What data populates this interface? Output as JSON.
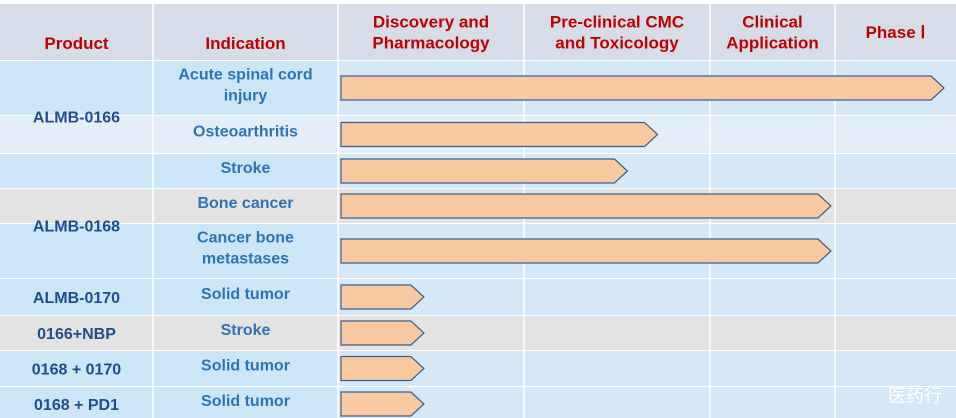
{
  "chart_data": {
    "type": "table",
    "columns": [
      "Product",
      "Indication",
      "Discovery and Pharmacology",
      "Pre-clinical CMC and Toxicology",
      "Clinical Application",
      "Phase Ⅰ"
    ],
    "header_lines": [
      [
        "Product"
      ],
      [
        "Indication"
      ],
      [
        "Discovery and",
        "Pharmacology"
      ],
      [
        "Pre-clinical CMC",
        "and Toxicology"
      ],
      [
        "Clinical",
        "Application"
      ],
      [
        "Phase Ⅰ"
      ]
    ],
    "stage_count": 4,
    "products": [
      {
        "name": "ALMB-0166",
        "rows": [
          {
            "indication": [
              "Acute spinal cord",
              "injury"
            ],
            "progress": 4.0
          },
          {
            "indication": [
              "Osteoarthritis"
            ],
            "progress": 2.1
          },
          {
            "indication": [
              "Stroke"
            ],
            "progress": 1.9
          }
        ]
      },
      {
        "name": "ALMB-0168",
        "rows": [
          {
            "indication": [
              "Bone cancer"
            ],
            "progress": 3.25
          },
          {
            "indication": [
              "Cancer bone",
              "metastases"
            ],
            "progress": 3.25
          }
        ]
      },
      {
        "name": "ALMB-0170",
        "rows": [
          {
            "indication": [
              "Solid tumor"
            ],
            "progress": 0.55
          }
        ]
      },
      {
        "name": "0166+NBP",
        "rows": [
          {
            "indication": [
              "Stroke"
            ],
            "progress": 0.55
          }
        ]
      },
      {
        "name": "0168 + 0170",
        "rows": [
          {
            "indication": [
              "Solid tumor"
            ],
            "progress": 0.55
          }
        ]
      },
      {
        "name": "0168 + PD1",
        "rows": [
          {
            "indication": [
              "Solid tumor"
            ],
            "progress": 0.55
          }
        ]
      }
    ],
    "colors": {
      "header_bg": "#d6dde8",
      "header_text": "#c00000",
      "product_text": "#1f4e8c",
      "indication_text": "#2e74b5",
      "row_blue": "#cce6f8",
      "row_pale": "#e4eef8",
      "row_grey": "#e3e3e3",
      "row_gridblue": "#d5e8f8",
      "bar_fill": "#f8c9a0",
      "bar_stroke": "#3e5f8a",
      "divider": "#ffffff"
    }
  },
  "watermark": "医药行"
}
